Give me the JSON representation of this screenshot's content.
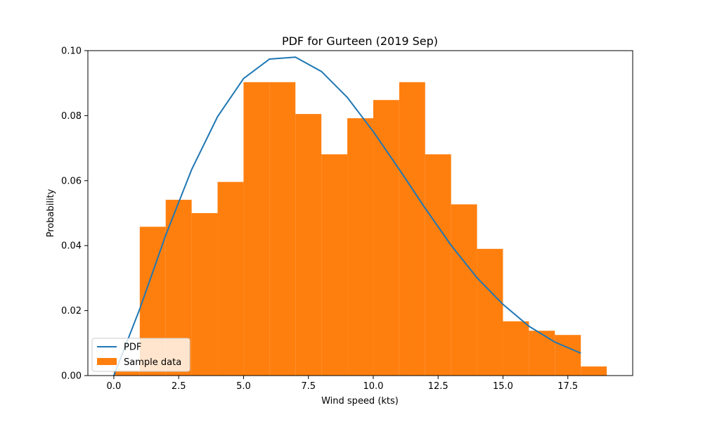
{
  "chart_data": {
    "type": "bar",
    "title": "PDF for Gurteen (2019 Sep)",
    "xlabel": "Wind speed (kts)",
    "ylabel": "Probability",
    "xlim": [
      -1,
      20
    ],
    "ylim": [
      0,
      0.1
    ],
    "x_ticks": [
      0,
      2.5,
      5,
      7.5,
      10,
      12.5,
      15,
      17.5
    ],
    "x_tick_labels": [
      "0.0",
      "2.5",
      "5.0",
      "7.5",
      "10.0",
      "12.5",
      "15.0",
      "17.5"
    ],
    "y_ticks": [
      0,
      0.02,
      0.04,
      0.06,
      0.08,
      0.1
    ],
    "y_tick_labels": [
      "0.00",
      "0.02",
      "0.04",
      "0.06",
      "0.08",
      "0.10"
    ],
    "grid": false,
    "legend_position": "lower-left",
    "series": [
      {
        "name": "Sample data",
        "type": "bar",
        "color": "#ff7f0e",
        "bins": [
          0,
          1,
          2,
          3,
          4,
          5,
          6,
          7,
          8,
          9,
          10,
          11,
          12,
          13,
          14,
          15,
          16,
          17,
          18
        ],
        "values": [
          0.0015,
          0.0458,
          0.0541,
          0.05,
          0.0596,
          0.0903,
          0.0903,
          0.0805,
          0.0681,
          0.0792,
          0.0848,
          0.0903,
          0.0681,
          0.0527,
          0.039,
          0.0167,
          0.0138,
          0.0125,
          0.0028
        ]
      },
      {
        "name": "PDF",
        "type": "line",
        "color": "#1f77b4",
        "x": [
          0,
          1,
          2,
          3,
          4,
          5,
          6,
          7,
          8,
          9,
          10,
          11,
          12,
          13,
          14,
          15,
          16,
          17,
          18
        ],
        "values": [
          0.0,
          0.0205,
          0.0432,
          0.0634,
          0.0797,
          0.0914,
          0.0974,
          0.098,
          0.0936,
          0.0856,
          0.0751,
          0.0635,
          0.0515,
          0.0401,
          0.0301,
          0.0219,
          0.0152,
          0.0103,
          0.0069
        ]
      }
    ]
  }
}
